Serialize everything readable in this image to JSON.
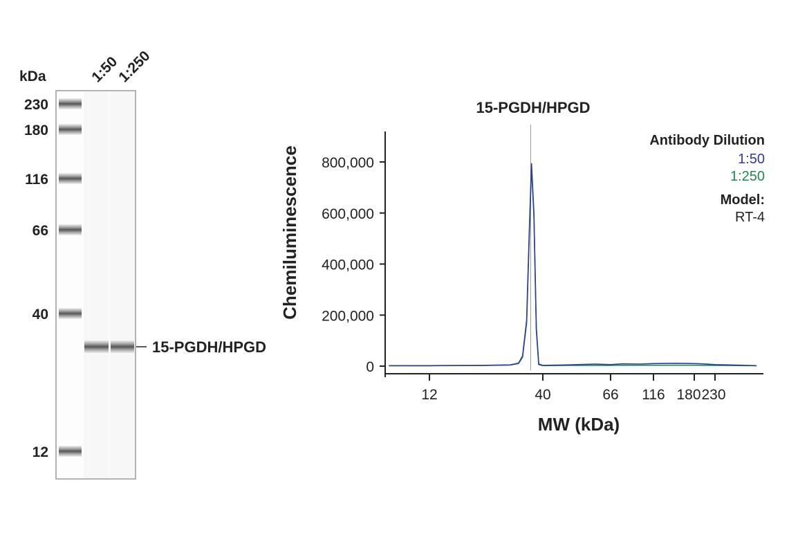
{
  "blot": {
    "unit_label": "kDa",
    "lane_labels": [
      "1:50",
      "1:250"
    ],
    "markers": [
      "230",
      "180",
      "116",
      "66",
      "40",
      "12"
    ],
    "band_label": "15-PGDH/HPGD"
  },
  "chart_data": {
    "type": "line",
    "title": "15-PGDH/HPGD",
    "xlabel": "MW (kDa)",
    "ylabel": "Chemiluminescence",
    "x_ticks": [
      "12",
      "40",
      "66",
      "116",
      "180",
      "230"
    ],
    "y_ticks": [
      "0",
      "200,000",
      "400,000",
      "600,000",
      "800,000"
    ],
    "ylim": [
      0,
      900000
    ],
    "grid": false,
    "reference_line_kda": 37,
    "legend": {
      "placement": "top-right",
      "title": "Antibody Dilution",
      "model_label": "Model:",
      "model_value": "RT-4"
    },
    "series": [
      {
        "name": "1:50",
        "color": "#2e3a9c",
        "x": [
          2,
          12,
          25,
          32,
          34,
          35,
          36,
          36.6,
          37.2,
          37.8,
          38.4,
          39,
          40,
          50,
          60,
          66,
          80,
          100,
          116,
          150,
          180,
          200,
          230,
          260,
          330
        ],
        "y": [
          2000,
          2000,
          3000,
          5000,
          12000,
          40000,
          180000,
          500000,
          795000,
          600000,
          150000,
          8000,
          3000,
          5000,
          8000,
          6000,
          9000,
          8000,
          10000,
          11000,
          10000,
          9000,
          6000,
          5000,
          2000
        ]
      },
      {
        "name": "1:250",
        "color": "#1e8a4a",
        "x": [
          2,
          12,
          25,
          32,
          34,
          35,
          36,
          36.6,
          37.2,
          37.8,
          38.4,
          39,
          40,
          50,
          66,
          116,
          180,
          230,
          260,
          330
        ],
        "y": [
          1500,
          1500,
          2500,
          4000,
          10000,
          35000,
          170000,
          480000,
          780000,
          590000,
          140000,
          6000,
          2000,
          3000,
          3000,
          3500,
          3500,
          3000,
          2500,
          1500
        ]
      }
    ]
  }
}
